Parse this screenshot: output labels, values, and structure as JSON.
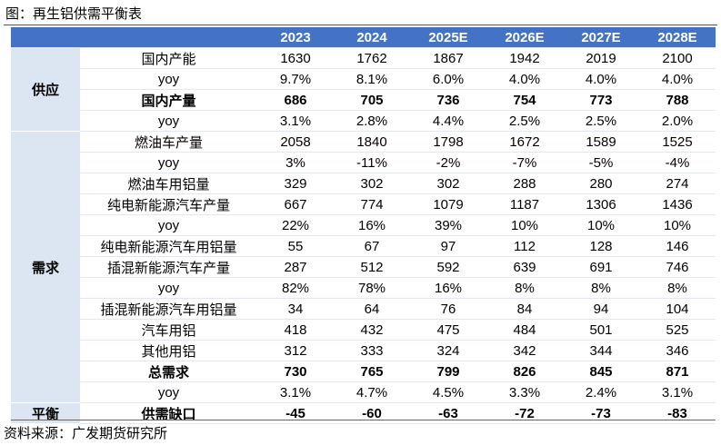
{
  "title": "图：再生铝供需平衡表",
  "table": {
    "columns": [
      "2023",
      "2024",
      "2025E",
      "2026E",
      "2027E",
      "2028E"
    ],
    "groups": [
      {
        "name": "供应",
        "rows": [
          {
            "label": "国内产能",
            "cells": [
              "1630",
              "1762",
              "1867",
              "1942",
              "2019",
              "2100"
            ],
            "bold": false
          },
          {
            "label": "yoy",
            "cells": [
              "9.7%",
              "8.1%",
              "6.0%",
              "4.0%",
              "4.0%",
              "4.0%"
            ],
            "bold": false
          },
          {
            "label": "国内产量",
            "cells": [
              "686",
              "705",
              "736",
              "754",
              "773",
              "788"
            ],
            "bold": true
          },
          {
            "label": "yoy",
            "cells": [
              "3.1%",
              "2.8%",
              "4.4%",
              "2.5%",
              "2.5%",
              "2.0%"
            ],
            "bold": false
          }
        ]
      },
      {
        "name": "需求",
        "rows": [
          {
            "label": "燃油车产量",
            "cells": [
              "2058",
              "1840",
              "1798",
              "1672",
              "1589",
              "1525"
            ],
            "bold": false
          },
          {
            "label": "yoy",
            "cells": [
              "3%",
              "-11%",
              "-2%",
              "-7%",
              "-5%",
              "-4%"
            ],
            "bold": false
          },
          {
            "label": "燃油车用铝量",
            "cells": [
              "329",
              "302",
              "302",
              "288",
              "280",
              "274"
            ],
            "bold": false
          },
          {
            "label": "纯电新能源汽车产量",
            "cells": [
              "667",
              "774",
              "1079",
              "1187",
              "1306",
              "1436"
            ],
            "bold": false
          },
          {
            "label": "yoy",
            "cells": [
              "22%",
              "16%",
              "39%",
              "10%",
              "10%",
              "10%"
            ],
            "bold": false
          },
          {
            "label": "纯电新能源汽车用铝量",
            "cells": [
              "55",
              "67",
              "97",
              "112",
              "128",
              "146"
            ],
            "bold": false
          },
          {
            "label": "插混新能源汽车产量",
            "cells": [
              "287",
              "512",
              "592",
              "639",
              "691",
              "746"
            ],
            "bold": false
          },
          {
            "label": "yoy",
            "cells": [
              "82%",
              "78%",
              "16%",
              "8%",
              "8%",
              "8%"
            ],
            "bold": false
          },
          {
            "label": "插混新能源汽车用铝量",
            "cells": [
              "34",
              "64",
              "76",
              "84",
              "94",
              "104"
            ],
            "bold": false
          },
          {
            "label": "汽车用铝",
            "cells": [
              "418",
              "432",
              "475",
              "484",
              "501",
              "525"
            ],
            "bold": false
          },
          {
            "label": "其他用铝",
            "cells": [
              "312",
              "333",
              "324",
              "342",
              "344",
              "346"
            ],
            "bold": false
          },
          {
            "label": "总需求",
            "cells": [
              "730",
              "765",
              "799",
              "826",
              "845",
              "871"
            ],
            "bold": true
          },
          {
            "label": "yoy",
            "cells": [
              "3.1%",
              "4.7%",
              "4.5%",
              "3.3%",
              "2.4%",
              "3.1%"
            ],
            "bold": false
          }
        ]
      },
      {
        "name": "平衡",
        "rows": [
          {
            "label": "供需缺口",
            "cells": [
              "-45",
              "-60",
              "-63",
              "-72",
              "-73",
              "-83"
            ],
            "bold": true
          }
        ]
      }
    ]
  },
  "source": "资料来源：广发期货研究所"
}
